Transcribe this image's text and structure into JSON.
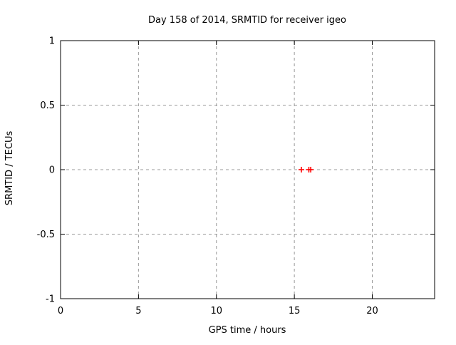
{
  "chart_data": {
    "type": "scatter",
    "title": "Day 158 of 2014, SRMTID for receiver igeo",
    "xlabel": "GPS time / hours",
    "ylabel": "SRMTID / TECUs",
    "xlim": [
      0,
      24
    ],
    "ylim": [
      -1,
      1
    ],
    "xticks": [
      {
        "value": 0,
        "label": "0"
      },
      {
        "value": 5,
        "label": "5"
      },
      {
        "value": 10,
        "label": "10"
      },
      {
        "value": 15,
        "label": "15"
      },
      {
        "value": 20,
        "label": "20"
      }
    ],
    "yticks": [
      {
        "value": -1,
        "label": "-1"
      },
      {
        "value": -0.5,
        "label": "-0.5"
      },
      {
        "value": 0,
        "label": "0"
      },
      {
        "value": 0.5,
        "label": "0.5"
      },
      {
        "value": 1,
        "label": "1"
      }
    ],
    "grid": true,
    "legend": "none",
    "series": [
      {
        "name": "SRMTID",
        "marker": "plus",
        "color": "#ff0000",
        "points": [
          {
            "x": 15.45,
            "y": 0.0
          },
          {
            "x": 15.93,
            "y": 0.0
          },
          {
            "x": 16.05,
            "y": 0.0
          }
        ]
      }
    ]
  },
  "colors": {
    "background": "#ffffff",
    "plot_border": "#000000",
    "grid": "#999999",
    "text": "#000000",
    "marker": "#ff0000"
  }
}
